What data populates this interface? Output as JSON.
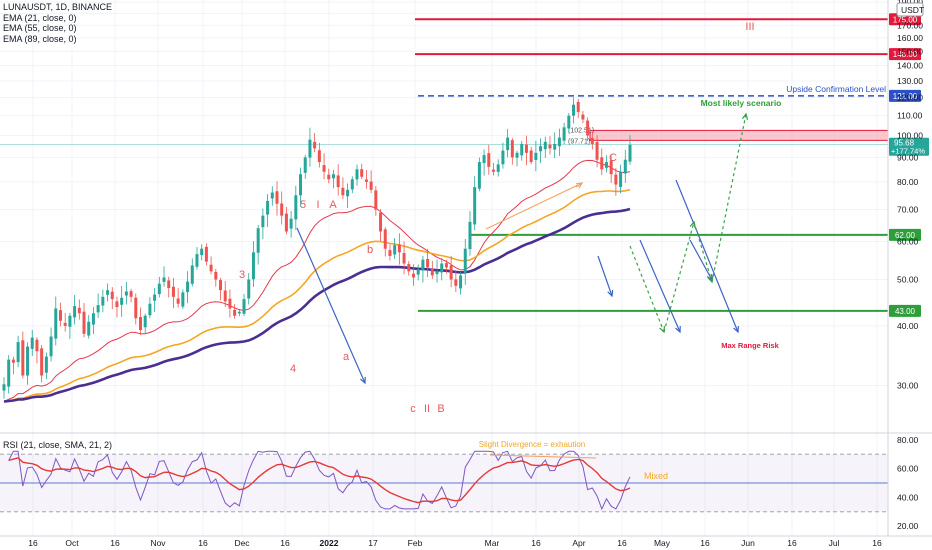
{
  "header": {
    "symbol_line": "LUNAUSDT, 1D, BINANCE",
    "indicators": [
      "EMA (21, close, 0)",
      "EMA (55, close, 0)",
      "EMA (89, close, 0)"
    ],
    "rsi_line": "RSI (21, close, SMA, 21, 2)",
    "currency": "USDT"
  },
  "colors": {
    "up": "#26a69a",
    "down": "#ef5350",
    "ema21": "#e53950",
    "ema55": "#f5a623",
    "ema89": "#4a2f91",
    "resistance": "#e3193b",
    "support": "#2e9e3a",
    "confirm": "#2b50c8",
    "zone": "#f5b5bd",
    "rsi": "#7e57c2",
    "rsi_ma": "#e53935"
  },
  "chart_data": [
    {
      "type": "candlestick",
      "title": "LUNAUSDT, 1D, BINANCE",
      "scale": "log",
      "ylim": [
        24,
        192
      ],
      "y_ticks": [
        190,
        180,
        170,
        160,
        150,
        140,
        130,
        120,
        110,
        100,
        90,
        80,
        70,
        60,
        50,
        40,
        30
      ],
      "x_ticks": [
        "16",
        "Oct",
        "16",
        "Nov",
        "16",
        "Dec",
        "16",
        "2022",
        "17",
        "Feb",
        "Mar",
        "16",
        "Apr",
        "16",
        "May",
        "16",
        "Jun",
        "16",
        "Jul",
        "16"
      ],
      "current_price": {
        "value": "95.68",
        "change": "+177.74%"
      },
      "levels": [
        {
          "value": 175,
          "label": "175.00",
          "role": "resistance"
        },
        {
          "value": 148,
          "label": "148.00",
          "role": "resistance"
        },
        {
          "value": 121,
          "label": "121.00",
          "role": "confirmation",
          "caption": "Upside Confirmation Level"
        },
        {
          "value": 62,
          "label": "62.00",
          "role": "support"
        },
        {
          "value": 43,
          "label": "43.00",
          "role": "support"
        }
      ],
      "zone": {
        "low": 97.7,
        "high": 102.5
      },
      "zone_labels": [
        "(102.51)",
        "(97.71)"
      ],
      "ohlc_path": [
        30.2,
        34.0,
        33.5,
        37.0,
        31.5,
        36.2,
        37.8,
        35.4,
        31.5,
        34.5,
        38.0,
        43.5,
        41.0,
        40.0,
        42.0,
        44.0,
        42.5,
        38.5,
        40.8,
        42.5,
        44.2,
        46.0,
        47.5,
        45.5,
        43.8,
        45.8,
        47.2,
        46.0,
        41.5,
        39.2,
        42.0,
        44.5,
        46.5,
        49.0,
        50.5,
        48.0,
        46.0,
        44.5,
        47.0,
        49.5,
        53.5,
        56.5,
        58.0,
        54.5,
        52.0,
        50.0,
        47.5,
        45.0,
        43.5,
        42.0,
        42.8,
        45.5,
        50.0,
        57.0,
        64.0,
        68.0,
        73.0,
        76.0,
        72.0,
        68.0,
        63.0,
        67.0,
        75.0,
        83.0,
        90.0,
        98.0,
        94.0,
        88.0,
        84.0,
        81.0,
        83.0,
        78.0,
        75.0,
        77.0,
        81.0,
        85.0,
        82.0,
        80.0,
        77.0,
        70.0,
        63.0,
        58.0,
        56.0,
        59.0,
        57.0,
        54.0,
        52.0,
        50.5,
        52.5,
        55.0,
        53.0,
        51.0,
        52.0,
        54.0,
        53.0,
        50.0,
        48.5,
        51.0,
        58.0,
        66.0,
        78.0,
        88.0,
        91.0,
        86.0,
        84.0,
        87.0,
        93.0,
        99.0,
        90.0,
        92.0,
        96.0,
        92.0,
        88.0,
        92.0,
        95.0,
        97.0,
        94.0,
        96.0,
        99.0,
        104.0,
        110.0,
        116.0,
        112.0,
        108.0,
        100.0,
        96.0,
        89.0,
        85.0,
        88.0,
        83.0,
        79.0,
        84.0,
        89.0,
        95.68
      ],
      "annotations": [
        "3",
        "4",
        "5",
        "I",
        "A",
        "a",
        "b",
        "c",
        "II",
        "B",
        "C",
        "III",
        "Most likely scenario",
        "Max Range Risk"
      ]
    },
    {
      "type": "line",
      "title": "RSI (21, close, SMA, 21, 2)",
      "ylim": [
        16,
        84
      ],
      "y_ticks": [
        80,
        60,
        40,
        20
      ],
      "upper_band": 70,
      "mid_band": 50,
      "lower_band": 30,
      "annotations": [
        "Slight Divergence = exhaution",
        "Mixed"
      ]
    }
  ]
}
